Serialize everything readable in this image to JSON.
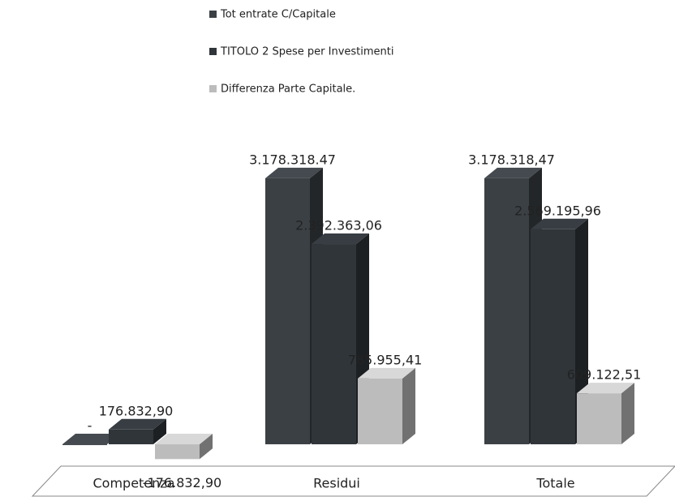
{
  "chart_data": {
    "type": "bar3d",
    "categories": [
      "Competenza",
      "Residui",
      "Totale"
    ],
    "series": [
      {
        "name": "Tot entrate C/Capitale",
        "color": "#3b4045",
        "values": [
          0,
          3178318.47,
          3178318.47
        ],
        "value_labels": [
          "-",
          "3.178.318.47",
          "3.178.318,47"
        ]
      },
      {
        "name": "TITOLO 2  Spese  per Investimenti",
        "color": "#30353a",
        "values": [
          176832.9,
          2392363.06,
          2569195.96
        ],
        "value_labels": [
          "176.832,90",
          "2.392.363,06",
          "2.569.195,96"
        ]
      },
      {
        "name": "Differenza Parte Capitale.",
        "color": "#bcbcbc",
        "values": [
          -176832.9,
          785955.41,
          609122.51
        ],
        "value_labels": [
          "-176.832,90",
          "785.955,41",
          "609.122,51"
        ]
      }
    ],
    "ylim": [
      -600000,
      3400000
    ]
  }
}
